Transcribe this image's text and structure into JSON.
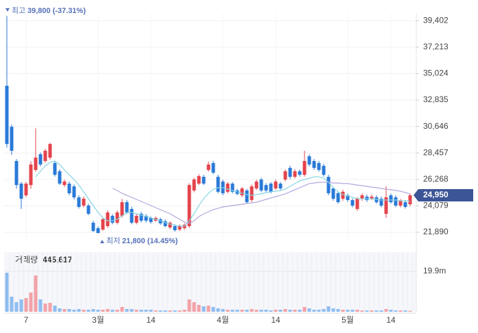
{
  "chart_data": {
    "type": "candlestick",
    "categories": [
      null,
      null,
      null,
      null,
      "7",
      null,
      null,
      null,
      null,
      null,
      null,
      null,
      null,
      null,
      null,
      null,
      null,
      null,
      null,
      "3월",
      null,
      null,
      null,
      null,
      null,
      null,
      null,
      null,
      null,
      null,
      "14",
      null,
      null,
      null,
      null,
      null,
      null,
      null,
      null,
      null,
      null,
      null,
      null,
      null,
      null,
      "4월",
      null,
      null,
      null,
      null,
      null,
      null,
      null,
      null,
      null,
      null,
      "14",
      null,
      null,
      null,
      null,
      null,
      null,
      null,
      null,
      null,
      null,
      null,
      null,
      null,
      null,
      "5월",
      null,
      null,
      null,
      null,
      null,
      null,
      null,
      null,
      "14",
      null,
      null,
      null,
      null
    ],
    "open": [
      34020,
      30620,
      27790,
      25920,
      24950,
      25800,
      27050,
      28350,
      27790,
      28070,
      27620,
      26940,
      25800,
      25920,
      25690,
      24780,
      24100,
      24100,
      22680,
      22230,
      22120,
      22400,
      23250,
      22680,
      23250,
      24380,
      23820,
      22680,
      23420,
      23250,
      23080,
      22850,
      22970,
      22800,
      22290,
      22400,
      22120,
      22230,
      22400,
      25350,
      25920,
      26480,
      27050,
      27620,
      26480,
      26090,
      25240,
      25920,
      25350,
      24950,
      25350,
      24560,
      25520,
      26260,
      25800,
      25920,
      25520,
      25920,
      26260,
      27220,
      26480,
      26940,
      26650,
      28180,
      27790,
      27620,
      27390,
      26480,
      25520,
      25120,
      24670,
      24950,
      24560,
      23820,
      24670,
      24840,
      24670,
      24780,
      24670,
      23420,
      24950,
      24780,
      24100,
      24380,
      24210
    ],
    "high": [
      39800,
      30800,
      27950,
      26050,
      26050,
      27750,
      30500,
      28500,
      28800,
      29300,
      27800,
      27100,
      26250,
      26100,
      25850,
      24950,
      24850,
      24250,
      22850,
      22400,
      23100,
      23700,
      23400,
      23700,
      24650,
      24550,
      24000,
      23400,
      23580,
      23400,
      23200,
      23200,
      23100,
      22950,
      22800,
      22550,
      22550,
      22650,
      25950,
      26400,
      26700,
      26650,
      27750,
      27800,
      26650,
      26250,
      26050,
      26050,
      25500,
      25650,
      25500,
      25850,
      26250,
      26400,
      25950,
      26050,
      26250,
      26050,
      27100,
      27400,
      27100,
      27100,
      28640,
      28350,
      27950,
      27800,
      27550,
      26650,
      25650,
      25250,
      25400,
      25100,
      24700,
      24800,
      25100,
      25000,
      25000,
      24950,
      24850,
      25690,
      25100,
      24950,
      24650,
      24550,
      25100
    ],
    "low": [
      28900,
      28300,
      25500,
      23820,
      24800,
      25500,
      26900,
      27350,
      27650,
      27900,
      26500,
      25800,
      25650,
      24950,
      24600,
      23850,
      23950,
      23300,
      21900,
      21800,
      22000,
      22250,
      22550,
      22550,
      23100,
      23400,
      22550,
      22550,
      22700,
      22700,
      22600,
      22750,
      22500,
      22300,
      22150,
      21950,
      22000,
      22100,
      22250,
      25200,
      25800,
      25800,
      26900,
      26700,
      25100,
      24950,
      25100,
      25100,
      24950,
      24800,
      24250,
      24400,
      25400,
      25200,
      25200,
      25100,
      25400,
      25400,
      26100,
      26300,
      26350,
      26500,
      26500,
      27350,
      27050,
      26900,
      26500,
      24950,
      24500,
      24250,
      24500,
      24400,
      23950,
      23650,
      24500,
      24400,
      24550,
      24250,
      23950,
      23080,
      24250,
      23950,
      23950,
      23850,
      24050
    ],
    "close": [
      29200,
      28640,
      25800,
      24670,
      25920,
      27500,
      28070,
      27500,
      28640,
      29200,
      26650,
      25920,
      26090,
      25120,
      24780,
      23990,
      24670,
      23420,
      22000,
      21830,
      22970,
      23530,
      22680,
      23530,
      24380,
      23530,
      22680,
      23250,
      22850,
      22850,
      22740,
      23080,
      22630,
      22400,
      22680,
      22060,
      22400,
      22510,
      25800,
      26260,
      26540,
      25920,
      27500,
      26820,
      25240,
      25120,
      25920,
      25240,
      25070,
      25520,
      24380,
      25690,
      26090,
      25350,
      25350,
      25240,
      26090,
      25520,
      26940,
      26480,
      26940,
      26650,
      27790,
      27500,
      27220,
      27050,
      26650,
      25120,
      24670,
      24380,
      25240,
      24560,
      24100,
      24670,
      24950,
      24560,
      24840,
      24380,
      24100,
      24780,
      24380,
      24100,
      24500,
      23990,
      24950
    ],
    "up_color": "#e5434c",
    "down_color": "#2a7ad8",
    "series": [
      {
        "color": "#86d6e2",
        "values": [
          null,
          null,
          null,
          null,
          null,
          null,
          26480,
          26940,
          27390,
          27670,
          27790,
          27500,
          27050,
          26650,
          26260,
          25800,
          25240,
          24670,
          24100,
          23530,
          23080,
          22850,
          22850,
          22970,
          23250,
          23530,
          23530,
          23420,
          23310,
          23190,
          23080,
          22970,
          22850,
          22680,
          22570,
          22460,
          22400,
          22400,
          22850,
          23420,
          24100,
          24670,
          25120,
          25460,
          25580,
          25580,
          25460,
          25350,
          25240,
          25120,
          25010,
          24950,
          25010,
          25070,
          25180,
          25240,
          25290,
          25350,
          25460,
          25690,
          25920,
          26140,
          26260,
          26370,
          26480,
          26480,
          26370,
          26030,
          25580,
          25240,
          25010,
          24900,
          24780,
          24670,
          24670,
          24670,
          24670,
          24610,
          24560,
          24560,
          24560,
          24560,
          24500,
          24500,
          24440
        ]
      },
      {
        "color": "#b3a6dd",
        "values": [
          null,
          null,
          null,
          null,
          null,
          null,
          null,
          null,
          null,
          null,
          null,
          null,
          null,
          null,
          null,
          null,
          null,
          null,
          null,
          null,
          null,
          null,
          25520,
          25350,
          25120,
          24950,
          24780,
          24610,
          24440,
          24270,
          24100,
          23930,
          23760,
          23590,
          23420,
          23190,
          22970,
          22740,
          22630,
          22850,
          23190,
          23420,
          23590,
          23760,
          23870,
          23990,
          24040,
          24100,
          24160,
          24210,
          24270,
          24330,
          24380,
          24500,
          24610,
          24730,
          24840,
          24950,
          25070,
          25240,
          25410,
          25580,
          25750,
          25920,
          25970,
          26030,
          26030,
          26030,
          25970,
          25970,
          25920,
          25920,
          25860,
          25800,
          25750,
          25690,
          25630,
          25580,
          25520,
          25460,
          25410,
          25350,
          25290,
          25180,
          25070
        ]
      }
    ],
    "ylim": [
      21266,
      39984
    ],
    "yticks": [
      {
        "value": 39402,
        "label": "39,402"
      },
      {
        "value": 37213,
        "label": "37,213"
      },
      {
        "value": 35024,
        "label": "35,024"
      },
      {
        "value": 32835,
        "label": "32,835"
      },
      {
        "value": 30646,
        "label": "30,646"
      },
      {
        "value": 28457,
        "label": "28,457"
      },
      {
        "value": 26268,
        "label": "26,268"
      },
      {
        "value": 24079,
        "label": "24,079"
      },
      {
        "value": 21890,
        "label": "21,890"
      }
    ],
    "grid": true,
    "last_price": {
      "value": 24950,
      "label": "24,950"
    },
    "high_annotation": {
      "label": "최고",
      "value": "39,800 (-37.31%)"
    },
    "low_annotation": {
      "label": "최저",
      "value": "21,800 (14.45%)"
    },
    "volume": {
      "title": "거래량",
      "value_label": "445,617",
      "up_color": "#f2a2a7",
      "down_color": "#8ebdf0",
      "values": [
        19209000,
        7414000,
        4718000,
        6066000,
        6740000,
        9436000,
        17861000,
        6066000,
        4044000,
        4381000,
        3033000,
        1685000,
        1348000,
        1348000,
        1011000,
        1348000,
        1011000,
        1011000,
        1348000,
        1011000,
        1011000,
        1348000,
        1011000,
        1011000,
        2359000,
        1348000,
        1348000,
        1011000,
        1011000,
        1011000,
        1011000,
        674000,
        674000,
        674000,
        674000,
        674000,
        674000,
        1011000,
        6066000,
        4718000,
        3370000,
        2696000,
        3033000,
        2359000,
        1685000,
        1348000,
        1011000,
        1011000,
        1011000,
        1011000,
        1011000,
        1348000,
        1011000,
        1011000,
        1011000,
        674000,
        1011000,
        1011000,
        1348000,
        1011000,
        1011000,
        1011000,
        2359000,
        1685000,
        1011000,
        1011000,
        1348000,
        2696000,
        1685000,
        1348000,
        1011000,
        1011000,
        1011000,
        1011000,
        674000,
        674000,
        674000,
        674000,
        674000,
        1348000,
        1011000,
        674000,
        674000,
        674000,
        445617
      ],
      "ylim": [
        0,
        29340000
      ],
      "yticks": [
        {
          "value": 19900000,
          "label": "19.9m"
        }
      ]
    }
  }
}
